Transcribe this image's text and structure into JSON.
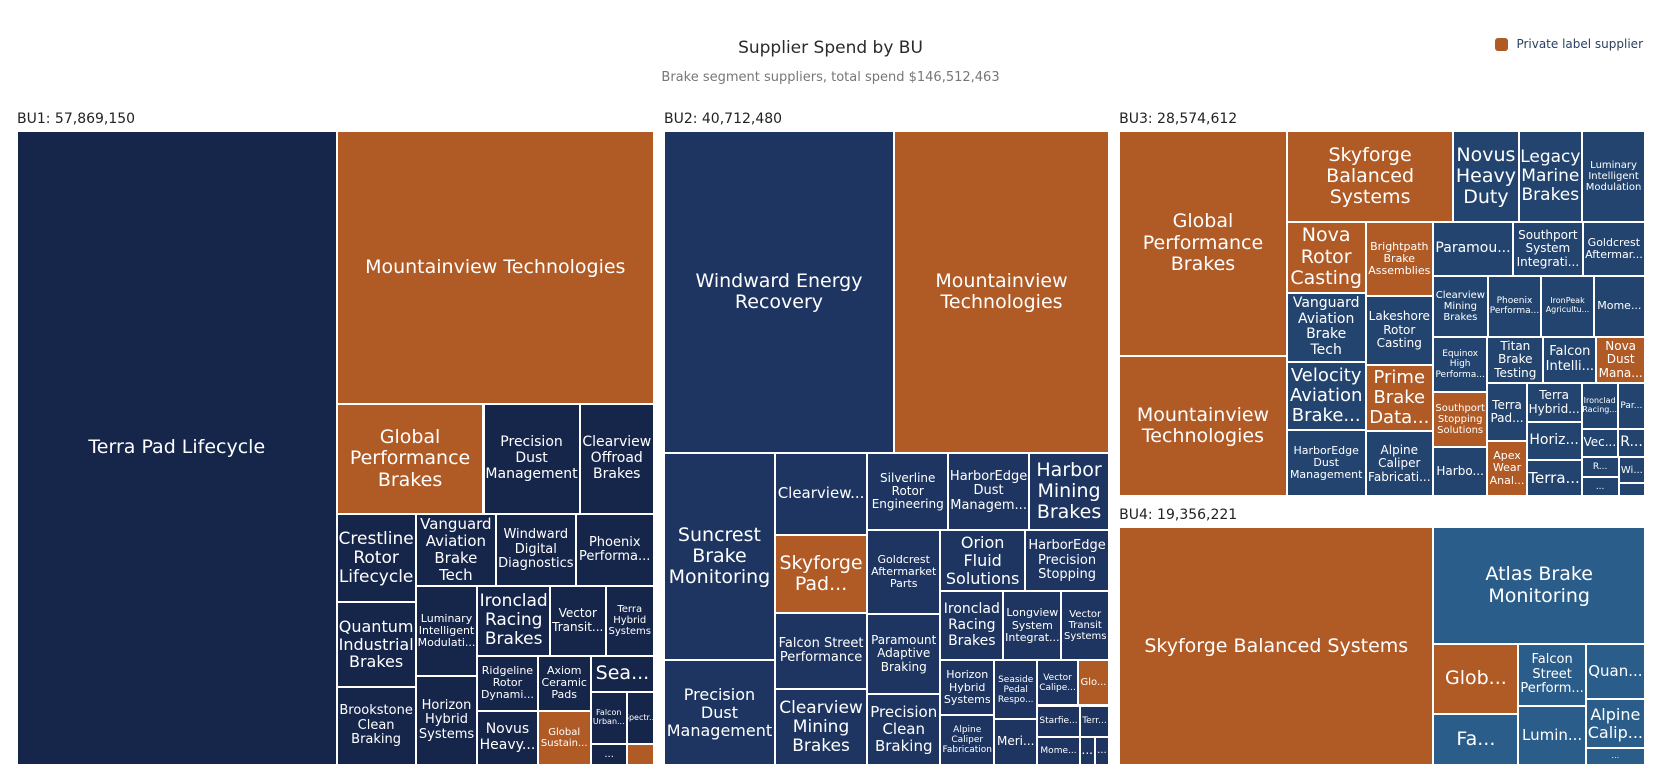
{
  "chart_data": {
    "type": "treemap",
    "title": "Supplier Spend by BU",
    "subtitle": "Brake segment suppliers, total spend $146,512,463",
    "legend": {
      "label": "Private label supplier",
      "color": "#b05a25"
    },
    "groups": [
      {
        "label": "BU1: 57,869,150",
        "value": 57869150,
        "color": "#16254a",
        "children": [
          {
            "name": "Terra Pad Lifecycle",
            "value": 28800000,
            "private": false
          },
          {
            "name": "Mountainview Technologies",
            "value": 12300000,
            "private": true
          },
          {
            "name": "Global Performance Brakes",
            "value": 2310000,
            "private": true
          },
          {
            "name": "Precision Dust Management",
            "value": 1510000,
            "private": false
          },
          {
            "name": "Clearview Offroad Brakes",
            "value": 1170000,
            "private": false
          },
          {
            "name": "Crestline Rotor Lifecycle",
            "value": 990000,
            "private": false
          },
          {
            "name": "Quantum Industrial Brakes",
            "value": 950000,
            "private": false
          },
          {
            "name": "Brookstone Clean Braking",
            "value": 880000,
            "private": false
          },
          {
            "name": "Vanguard Aviation Brake Tech",
            "value": 820000,
            "private": false
          },
          {
            "name": "Windward Digital Diagnostics",
            "value": 810000,
            "private": false
          },
          {
            "name": "Phoenix Performa...",
            "value": 800000,
            "private": false
          },
          {
            "name": "Luminary Intelligent Modulati...",
            "value": 790000,
            "private": false
          },
          {
            "name": "Horizon Hybrid Systems",
            "value": 780000,
            "private": false
          },
          {
            "name": "Ironclad Racing Brakes",
            "value": 720000,
            "private": false
          },
          {
            "name": "Vector Transit...",
            "value": 550000,
            "private": false
          },
          {
            "name": "Terra Hybrid Systems",
            "value": 480000,
            "private": false
          },
          {
            "name": "Ridgeline Rotor Dynami...",
            "value": 470000,
            "private": false
          },
          {
            "name": "Novus Heavy...",
            "value": 465000,
            "private": false
          },
          {
            "name": "Axiom Ceramic Pads",
            "value": 420000,
            "private": false
          },
          {
            "name": "Global Sustain...",
            "value": 410000,
            "private": true
          },
          {
            "name": "Sea...",
            "value": 330000,
            "private": false
          },
          {
            "name": "Falcon Urban...",
            "value": 260000,
            "private": false
          },
          {
            "name": "Spectr...",
            "value": 200000,
            "private": false
          },
          {
            "name": "...",
            "value": 110000,
            "private": false
          },
          {
            "name": null,
            "value": 80000,
            "private": true
          }
        ]
      },
      {
        "label": "BU2: 40,712,480",
        "value": 40712480,
        "color": "#1d3560",
        "children": [
          {
            "name": "Windward Energy Recovery",
            "value": 10530000,
            "private": false
          },
          {
            "name": "Mountainview Technologies",
            "value": 9850000,
            "private": true
          },
          {
            "name": "Suncrest Brake Monitoring",
            "value": 3270000,
            "private": false
          },
          {
            "name": "Precision Dust Management",
            "value": 1650000,
            "private": false
          },
          {
            "name": "Clearview...",
            "value": 1070000,
            "private": false
          },
          {
            "name": "Skyforge Pad...",
            "value": 1030000,
            "private": true
          },
          {
            "name": "Falcon Street Performance",
            "value": 1000000,
            "private": false
          },
          {
            "name": "Clearview Mining Brakes",
            "value": 990000,
            "private": false
          },
          {
            "name": "Silverline Rotor Engineering",
            "value": 890000,
            "private": false
          },
          {
            "name": "HarborEdge Dust Managem...",
            "value": 885000,
            "private": false
          },
          {
            "name": "Harbor Mining Brakes",
            "value": 880000,
            "private": false
          },
          {
            "name": "Goldcrest Aftermarket Parts",
            "value": 870000,
            "private": false
          },
          {
            "name": "Paramount Adaptive Braking",
            "value": 830000,
            "private": false
          },
          {
            "name": "Precision Clean Braking",
            "value": 740000,
            "private": false
          },
          {
            "name": "Orion Fluid Solutions",
            "value": 735000,
            "private": false
          },
          {
            "name": "HarborEdge Precision Stopping",
            "value": 730000,
            "private": false
          },
          {
            "name": "Ironclad Racing Brakes",
            "value": 620000,
            "private": false
          },
          {
            "name": "Longview System Integrat...",
            "value": 570000,
            "private": false
          },
          {
            "name": "Vector Transit Systems",
            "value": 470000,
            "private": false
          },
          {
            "name": "Horizon Hybrid Systems",
            "value": 420000,
            "private": false
          },
          {
            "name": "Alpine Caliper Fabrication",
            "value": 380000,
            "private": false
          },
          {
            "name": "Seaside Pedal Respo...",
            "value": 360000,
            "private": false
          },
          {
            "name": "Meri...",
            "value": 280000,
            "private": false
          },
          {
            "name": "Vector Calipe...",
            "value": 260000,
            "private": false
          },
          {
            "name": "Glo...",
            "value": 200000,
            "private": true
          },
          {
            "name": "Starfie...",
            "value": 190000,
            "private": false
          },
          {
            "name": "Mome...",
            "value": 170000,
            "private": false
          },
          {
            "name": "Terr...",
            "value": 130000,
            "private": false
          },
          {
            "name": "...",
            "value": 60000,
            "private": false
          },
          {
            "name": "...",
            "value": 58000,
            "private": false
          }
        ]
      },
      {
        "label": "BU3: 28,574,612",
        "value": 28574612,
        "color": "#22446f",
        "children": [
          {
            "name": "Global Performance Brakes",
            "value": 5470000,
            "private": true
          },
          {
            "name": "Mountainview Technologies",
            "value": 3430000,
            "private": true
          },
          {
            "name": "Skyforge Balanced Systems",
            "value": 2200000,
            "private": true
          },
          {
            "name": "Novus Heavy Duty",
            "value": 860000,
            "private": false
          },
          {
            "name": "Legacy Marine Brakes",
            "value": 840000,
            "private": false
          },
          {
            "name": "Luminary Intelligent Modulation",
            "value": 830000,
            "private": false
          },
          {
            "name": "Nova Rotor Casting",
            "value": 810000,
            "private": true
          },
          {
            "name": "Vanguard Aviation Brake Tech",
            "value": 790000,
            "private": false
          },
          {
            "name": "Velocity Aviation Brake...",
            "value": 780000,
            "private": false
          },
          {
            "name": "HarborEdge Dust Management",
            "value": 760000,
            "private": false
          },
          {
            "name": "Brightpath Brake Assemblies",
            "value": 730000,
            "private": true
          },
          {
            "name": "Lakeshore Rotor Casting",
            "value": 670000,
            "private": false
          },
          {
            "name": "Prime Brake Data...",
            "value": 650000,
            "private": true
          },
          {
            "name": "Alpine Caliper Fabricati...",
            "value": 640000,
            "private": false
          },
          {
            "name": "Paramou...",
            "value": 630000,
            "private": false
          },
          {
            "name": "Southport System Integrati...",
            "value": 550000,
            "private": false
          },
          {
            "name": "Goldcrest Aftermar...",
            "value": 490000,
            "private": false
          },
          {
            "name": "Clearview Mining Brakes",
            "value": 480000,
            "private": false
          },
          {
            "name": "Phoenix Performa...",
            "value": 470000,
            "private": false
          },
          {
            "name": "IronPeak Agricultu...",
            "value": 460000,
            "private": false
          },
          {
            "name": "Mome...",
            "value": 450000,
            "private": false
          },
          {
            "name": "Equinox High Performa...",
            "value": 440000,
            "private": false
          },
          {
            "name": "Southport Stopping Solutions",
            "value": 430000,
            "private": true
          },
          {
            "name": "Harbo...",
            "value": 390000,
            "private": false
          },
          {
            "name": "Titan Brake Testing",
            "value": 380000,
            "private": false
          },
          {
            "name": "Falcon Intelli...",
            "value": 360000,
            "private": false
          },
          {
            "name": "Nova Dust Mana...",
            "value": 330000,
            "private": true
          },
          {
            "name": "Terra Pad...",
            "value": 328000,
            "private": false
          },
          {
            "name": "Apex Wear Anal...",
            "value": 320000,
            "private": true
          },
          {
            "name": "Terra Hybrid...",
            "value": 310000,
            "private": false
          },
          {
            "name": "Horiz...",
            "value": 300000,
            "private": false
          },
          {
            "name": "Terra...",
            "value": 290000,
            "private": false
          },
          {
            "name": "Ironclad Racing...",
            "value": 240000,
            "private": false
          },
          {
            "name": "Par...",
            "value": 180000,
            "private": false
          },
          {
            "name": "Vec...",
            "value": 150000,
            "private": false
          },
          {
            "name": "R...",
            "value": 110000,
            "private": false
          },
          {
            "name": "R...",
            "value": 108000,
            "private": false
          },
          {
            "name": "...",
            "value": 105000,
            "private": false
          },
          {
            "name": "Wi...",
            "value": 100000,
            "private": false
          },
          {
            "name": null,
            "value": 50000,
            "private": false
          }
        ]
      },
      {
        "label": "BU4: 19,356,221",
        "value": 19356221,
        "color": "#2b5d8b",
        "children": [
          {
            "name": "Skyforge Balanced Systems",
            "value": 11450000,
            "private": true
          },
          {
            "name": "Atlas Brake Monitoring",
            "value": 3780000,
            "private": false
          },
          {
            "name": "Glob...",
            "value": 910000,
            "private": true
          },
          {
            "name": "Fa...",
            "value": 670000,
            "private": false
          },
          {
            "name": "Falcon Street Perform...",
            "value": 640000,
            "private": false
          },
          {
            "name": "Lumin...",
            "value": 610000,
            "private": false
          },
          {
            "name": "Quan...",
            "value": 500000,
            "private": false
          },
          {
            "name": "Alpine Calip...",
            "value": 450000,
            "private": false
          },
          {
            "name": "...",
            "value": 150000,
            "private": false
          }
        ]
      }
    ]
  }
}
